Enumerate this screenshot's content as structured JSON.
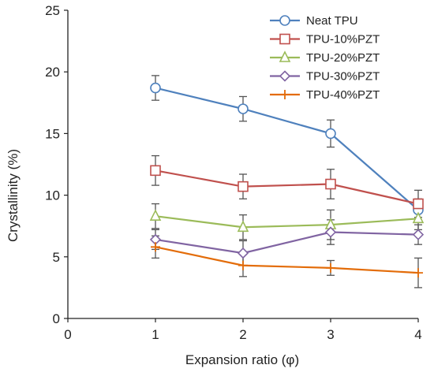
{
  "chart_data": {
    "type": "line",
    "title": "",
    "xlabel": "Expansion ratio (φ)",
    "ylabel": "Crystallinity (%)",
    "xlim": [
      0,
      4
    ],
    "ylim": [
      0,
      25
    ],
    "x_ticks": [
      0,
      1,
      2,
      3,
      4
    ],
    "y_ticks": [
      0,
      5,
      10,
      15,
      20,
      25
    ],
    "grid": false,
    "legend_position": "top-right",
    "x": [
      1,
      2,
      3,
      4
    ],
    "series": [
      {
        "name": "Neat TPU",
        "color": "#4f81bd",
        "marker": "circle",
        "values": [
          18.7,
          17.0,
          15.0,
          8.8
        ],
        "errors": [
          1.0,
          1.0,
          1.1,
          0.9
        ]
      },
      {
        "name": "TPU-10%PZT",
        "color": "#c0504d",
        "marker": "square",
        "values": [
          12.0,
          10.7,
          10.9,
          9.3
        ],
        "errors": [
          1.2,
          1.0,
          1.2,
          1.1
        ]
      },
      {
        "name": "TPU-20%PZT",
        "color": "#9bbb59",
        "marker": "triangle",
        "values": [
          8.3,
          7.4,
          7.6,
          8.1
        ],
        "errors": [
          1.0,
          1.0,
          1.2,
          0.9
        ]
      },
      {
        "name": "TPU-30%PZT",
        "color": "#8064a2",
        "marker": "diamond",
        "values": [
          6.4,
          5.3,
          7.0,
          6.8
        ],
        "errors": [
          0.8,
          1.0,
          1.0,
          0.8
        ]
      },
      {
        "name": "TPU-40%PZT",
        "color": "#e36c09",
        "marker": "plus",
        "values": [
          5.8,
          4.3,
          4.1,
          3.7
        ],
        "errors": [
          0.9,
          0.9,
          0.6,
          1.2
        ]
      }
    ]
  }
}
